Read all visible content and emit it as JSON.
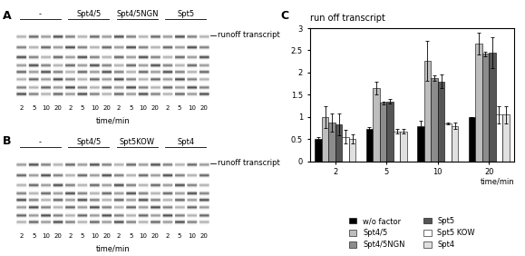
{
  "gels": [
    {
      "label": "A",
      "lane_groups": [
        "-",
        "Spt4/5",
        "Spt4/5NGN",
        "Spt5"
      ],
      "lane_labels": [
        2,
        5,
        10,
        20
      ],
      "band_label": "runoff transcript",
      "axis_label": "time/min"
    },
    {
      "label": "B",
      "lane_groups": [
        "-",
        "Spt4/5",
        "Spt5KOW",
        "Spt4"
      ],
      "lane_labels": [
        2,
        5,
        10,
        20
      ],
      "band_label": "runoff transcript",
      "axis_label": "time/min"
    }
  ],
  "chart_label": "C",
  "chart_data": {
    "type": "bar",
    "title": "run off transcript",
    "x_label": "time/min",
    "categories": [
      "2",
      "5",
      "10",
      "20"
    ],
    "series": [
      {
        "name": "w/o factor",
        "color": "#000000",
        "values": [
          0.5,
          0.72,
          0.8,
          1.0
        ],
        "errors": [
          0.05,
          0.05,
          0.12,
          0.0
        ]
      },
      {
        "name": "Spt4/5",
        "color": "#bdbdbd",
        "values": [
          1.0,
          1.65,
          2.27,
          2.65
        ],
        "errors": [
          0.25,
          0.15,
          0.45,
          0.25
        ]
      },
      {
        "name": "Spt4/5NGN",
        "color": "#8c8c8c",
        "values": [
          0.87,
          1.32,
          1.88,
          2.42
        ],
        "errors": [
          0.2,
          0.03,
          0.06,
          0.05
        ]
      },
      {
        "name": "Spt5",
        "color": "#555555",
        "values": [
          0.83,
          1.35,
          1.8,
          2.45
        ],
        "errors": [
          0.25,
          0.05,
          0.15,
          0.35
        ]
      },
      {
        "name": "Spt5 KOW",
        "color": "#ffffff",
        "values": [
          0.55,
          0.67,
          0.85,
          1.05
        ],
        "errors": [
          0.15,
          0.05,
          0.02,
          0.2
        ]
      },
      {
        "name": "Spt4",
        "color": "#e0e0e0",
        "values": [
          0.5,
          0.67,
          0.8,
          1.05
        ],
        "errors": [
          0.1,
          0.05,
          0.07,
          0.2
        ]
      }
    ],
    "ylim": [
      0,
      3
    ],
    "yticks": [
      0,
      0.5,
      1,
      1.5,
      2,
      2.5,
      3
    ],
    "grid": false,
    "legend": "lower center"
  }
}
